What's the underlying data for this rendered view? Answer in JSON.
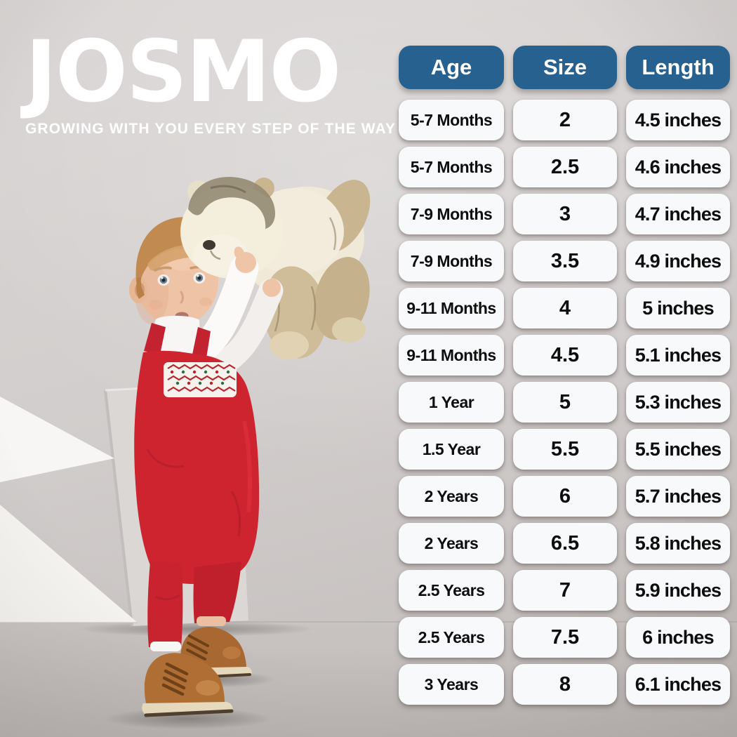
{
  "brand": {
    "logo": "JOSMO",
    "tagline": "GROWING WITH YOU EVERY STEP OF THE WAY"
  },
  "chart_data": {
    "type": "table",
    "columns": [
      "Age",
      "Size",
      "Length"
    ],
    "rows": [
      [
        "5-7 Months",
        "2",
        "4.5 inches"
      ],
      [
        "5-7 Months",
        "2.5",
        "4.6 inches"
      ],
      [
        "7-9 Months",
        "3",
        "4.7 inches"
      ],
      [
        "7-9 Months",
        "3.5",
        "4.9 inches"
      ],
      [
        "9-11 Months",
        "4",
        "5 inches"
      ],
      [
        "9-11 Months",
        "4.5",
        "5.1 inches"
      ],
      [
        "1 Year",
        "5",
        "5.3 inches"
      ],
      [
        "1.5 Year",
        "5.5",
        "5.5 inches"
      ],
      [
        "2 Years",
        "6",
        "5.7 inches"
      ],
      [
        "2 Years",
        "6.5",
        "5.8 inches"
      ],
      [
        "2.5 Years",
        "7",
        "5.9 inches"
      ],
      [
        "2.5 Years",
        "7.5",
        "6 inches"
      ],
      [
        "3 Years",
        "8",
        "6.1 inches"
      ]
    ]
  },
  "colors": {
    "header_bg": "#27618f",
    "header_text": "#ffffff",
    "cell_bg": "#f7f9fa",
    "cell_text": "#0e0e0e",
    "background_gray": "#d6d2d1",
    "logo_text": "#ffffff",
    "romper_red": "#cd2430",
    "boot_brown": "#b26f33"
  }
}
